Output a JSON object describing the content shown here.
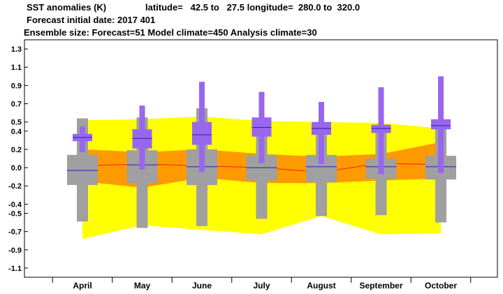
{
  "header": {
    "line1_title": "SST anomalies (K)",
    "line1_region": "latitude=   42.5 to   27.5 longitude=  280.0 to  320.0",
    "line2": "Forecast initial date: 2017 401",
    "line3": "Ensemble size: Forecast=51 Model climate=450 Analysis climate=30"
  },
  "colors": {
    "climate_outer": "#ffff00",
    "climate_inner": "#ff9900",
    "climate_median_line": "#ff2200",
    "climate_box": "#a0a0a0",
    "forecast_box": "#9966ee",
    "median_line": "#2222aa"
  },
  "chart_data": {
    "type": "box",
    "title": "",
    "xlabel": "",
    "ylabel": "",
    "categories": [
      "April",
      "May",
      "June",
      "July",
      "August",
      "September",
      "October"
    ],
    "ylim": [
      -1.2,
      1.4
    ],
    "yticks": [
      -1.1,
      -0.9,
      -0.7,
      -0.5,
      -0.4,
      -0.2,
      0.0,
      0.2,
      0.4,
      0.5,
      0.7,
      0.9,
      1.1,
      1.3
    ],
    "ytick_labels": [
      "-1.1",
      "-0.9",
      "-0.7",
      "-0.5",
      "-0.4",
      "-0.2",
      "0.0",
      "0.2",
      "0.4",
      "0.5",
      "0.7",
      "0.9",
      "1.1",
      "1.3"
    ],
    "grid": false,
    "legend": "none",
    "climate_band_outer": {
      "upper": [
        0.52,
        0.53,
        0.56,
        0.51,
        0.5,
        0.49,
        0.43
      ],
      "lower": [
        -0.78,
        -0.63,
        -0.68,
        -0.73,
        -0.53,
        -0.73,
        -0.72
      ]
    },
    "climate_band_inner": {
      "upper": [
        0.2,
        0.17,
        0.2,
        0.15,
        0.12,
        0.15,
        0.28
      ],
      "lower": [
        -0.15,
        -0.22,
        -0.11,
        -0.17,
        -0.17,
        -0.14,
        -0.12
      ]
    },
    "climate_median": [
      0.02,
      0.04,
      0.02,
      0.0,
      -0.05,
      0.05,
      0.03
    ],
    "climate_box": [
      {
        "whisker_low": -0.59,
        "box_low": -0.19,
        "median": -0.03,
        "box_high": 0.14,
        "whisker_high": 0.54
      },
      {
        "whisker_low": -0.66,
        "box_low": -0.17,
        "median": 0.03,
        "box_high": 0.19,
        "whisker_high": 0.55
      },
      {
        "whisker_low": -0.64,
        "box_low": -0.19,
        "median": 0.01,
        "box_high": 0.2,
        "whisker_high": 0.65
      },
      {
        "whisker_low": -0.56,
        "box_low": -0.14,
        "median": 0.0,
        "box_high": 0.14,
        "whisker_high": 0.43
      },
      {
        "whisker_low": -0.53,
        "box_low": -0.16,
        "median": 0.01,
        "box_high": 0.14,
        "whisker_high": 0.5
      },
      {
        "whisker_low": -0.52,
        "box_low": -0.12,
        "median": 0.01,
        "box_high": 0.1,
        "whisker_high": 0.45
      },
      {
        "whisker_low": -0.6,
        "box_low": -0.13,
        "median": 0.01,
        "box_high": 0.13,
        "whisker_high": 0.5
      }
    ],
    "forecast": [
      {
        "min": 0.17,
        "p10": 0.29,
        "median": 0.33,
        "p90": 0.37,
        "max": 0.45
      },
      {
        "min": -0.02,
        "p10": 0.21,
        "median": 0.32,
        "p90": 0.42,
        "max": 0.68
      },
      {
        "min": -0.05,
        "p10": 0.25,
        "median": 0.36,
        "p90": 0.5,
        "max": 0.94
      },
      {
        "min": 0.05,
        "p10": 0.34,
        "median": 0.44,
        "p90": 0.55,
        "max": 0.83
      },
      {
        "min": 0.04,
        "p10": 0.36,
        "median": 0.43,
        "p90": 0.5,
        "max": 0.72
      },
      {
        "min": -0.07,
        "p10": 0.38,
        "median": 0.43,
        "p90": 0.47,
        "max": 0.88
      },
      {
        "min": -0.06,
        "p10": 0.42,
        "median": 0.46,
        "p90": 0.53,
        "max": 1.0
      }
    ]
  }
}
